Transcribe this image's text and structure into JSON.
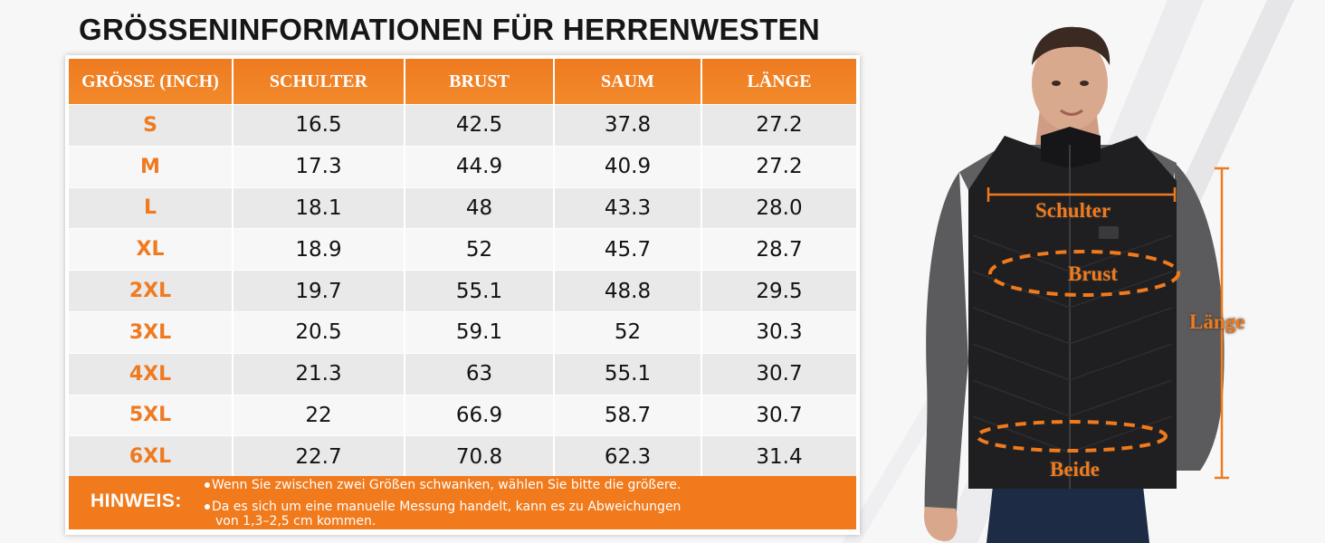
{
  "title": "GRÖSSENINFORMATIONEN FÜR HERRENWESTEN",
  "table": {
    "headers": [
      "GRÖSSE (INCH)",
      "SCHULTER",
      "BRUST",
      "SAUM",
      "LÄNGE"
    ],
    "rows": [
      [
        "S",
        "16.5",
        "42.5",
        "37.8",
        "27.2"
      ],
      [
        "M",
        "17.3",
        "44.9",
        "40.9",
        "27.2"
      ],
      [
        "L",
        "18.1",
        "48",
        "43.3",
        "28.0"
      ],
      [
        "XL",
        "18.9",
        "52",
        "45.7",
        "28.7"
      ],
      [
        "2XL",
        "19.7",
        "55.1",
        "48.8",
        "29.5"
      ],
      [
        "3XL",
        "20.5",
        "59.1",
        "52",
        "30.3"
      ],
      [
        "4XL",
        "21.3",
        "63",
        "55.1",
        "30.7"
      ],
      [
        "5XL",
        "22",
        "66.9",
        "58.7",
        "30.7"
      ],
      [
        "6XL",
        "22.7",
        "70.8",
        "62.3",
        "31.4"
      ]
    ]
  },
  "note": {
    "label": "HINWEIS:",
    "line1": "Wenn Sie zwischen zwei Größen schwanken, wählen Sie bitte die größere.",
    "line2a": "Da es sich um eine manuelle Messung handelt, kann es zu Abweichungen",
    "line2b": "von 1,3–2,5 cm kommen."
  },
  "measure_labels": {
    "shoulder": "Schulter",
    "chest": "Brust",
    "length": "Länge",
    "hem": "Beide"
  },
  "colors": {
    "accent": "#f07a1c",
    "text": "#161616",
    "row_odd": "#e9e9e9",
    "row_even": "#f7f7f7"
  }
}
